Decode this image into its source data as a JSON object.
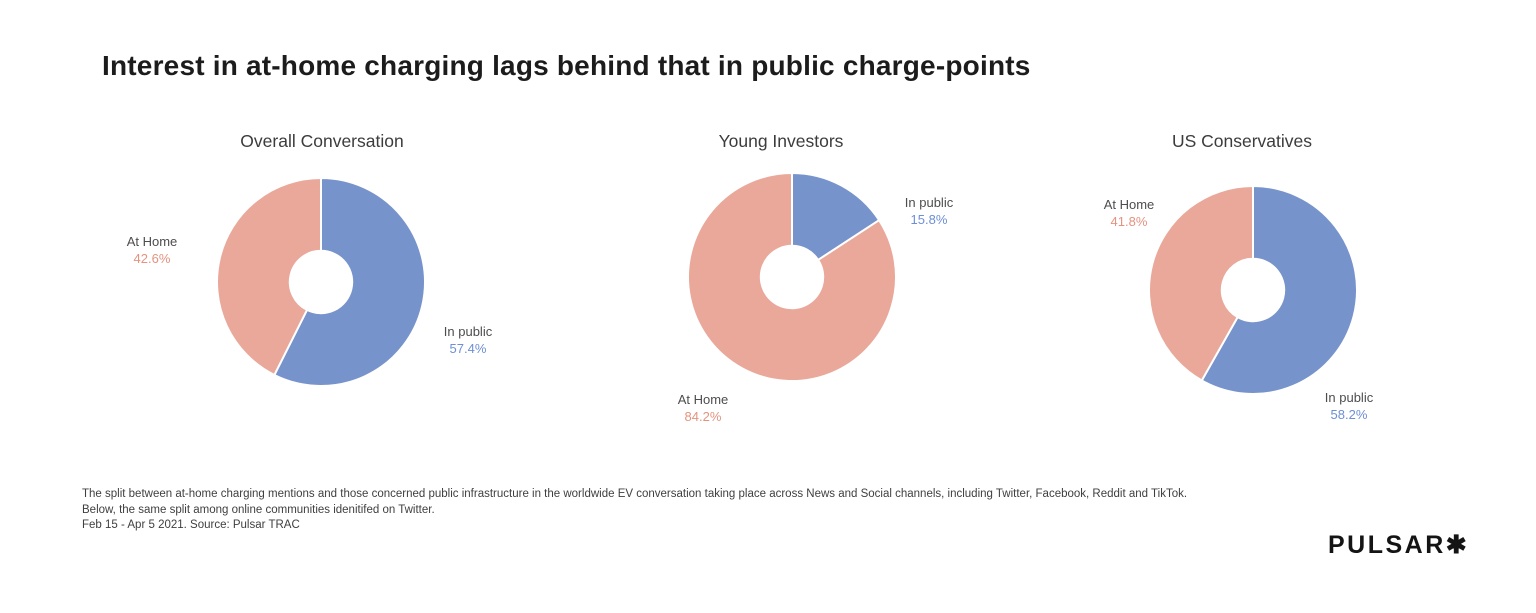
{
  "page_title": "Interest in at-home charging lags behind that in public charge-points",
  "chart_data": [
    {
      "type": "pie",
      "variant": "donut",
      "title": "Overall Conversation",
      "categories": [
        "In public",
        "At Home"
      ],
      "values": [
        57.4,
        42.6
      ],
      "value_labels": [
        "57.4%",
        "42.6%"
      ],
      "colors": [
        "#7793CB",
        "#E9A89A"
      ],
      "label_text_colors": [
        "#6E8ED5",
        "#E5937F"
      ],
      "start_angle_deg": 0,
      "direction": "clockwise",
      "inner_radius_ratio": 0.3,
      "legend": "none"
    },
    {
      "type": "pie",
      "variant": "donut",
      "title": "Young Investors",
      "categories": [
        "In public",
        "At Home"
      ],
      "values": [
        15.8,
        84.2
      ],
      "value_labels": [
        "15.8%",
        "84.2%"
      ],
      "colors": [
        "#7793CB",
        "#E9A89A"
      ],
      "label_text_colors": [
        "#6E8ED5",
        "#E5937F"
      ],
      "start_angle_deg": 0,
      "direction": "clockwise",
      "inner_radius_ratio": 0.3,
      "legend": "none"
    },
    {
      "type": "pie",
      "variant": "donut",
      "title": "US Conservatives",
      "categories": [
        "In public",
        "At Home"
      ],
      "values": [
        58.2,
        41.8
      ],
      "value_labels": [
        "58.2%",
        "41.8%"
      ],
      "colors": [
        "#7793CB",
        "#E9A89A"
      ],
      "label_text_colors": [
        "#6E8ED5",
        "#E5937F"
      ],
      "start_angle_deg": 0,
      "direction": "clockwise",
      "inner_radius_ratio": 0.3,
      "legend": "none"
    }
  ],
  "footer": {
    "lines": [
      "The split between at-home charging mentions and those concerned public infrastructure in the worldwide EV conversation taking place across News and Social channels, including Twitter, Facebook, Reddit and TikTok.",
      "Below, the same split among online communities idenitifed on Twitter.",
      "Feb 15 - Apr 5 2021. Source: Pulsar TRAC"
    ]
  },
  "logo": {
    "text": "PULSAR",
    "mark": "✱"
  }
}
